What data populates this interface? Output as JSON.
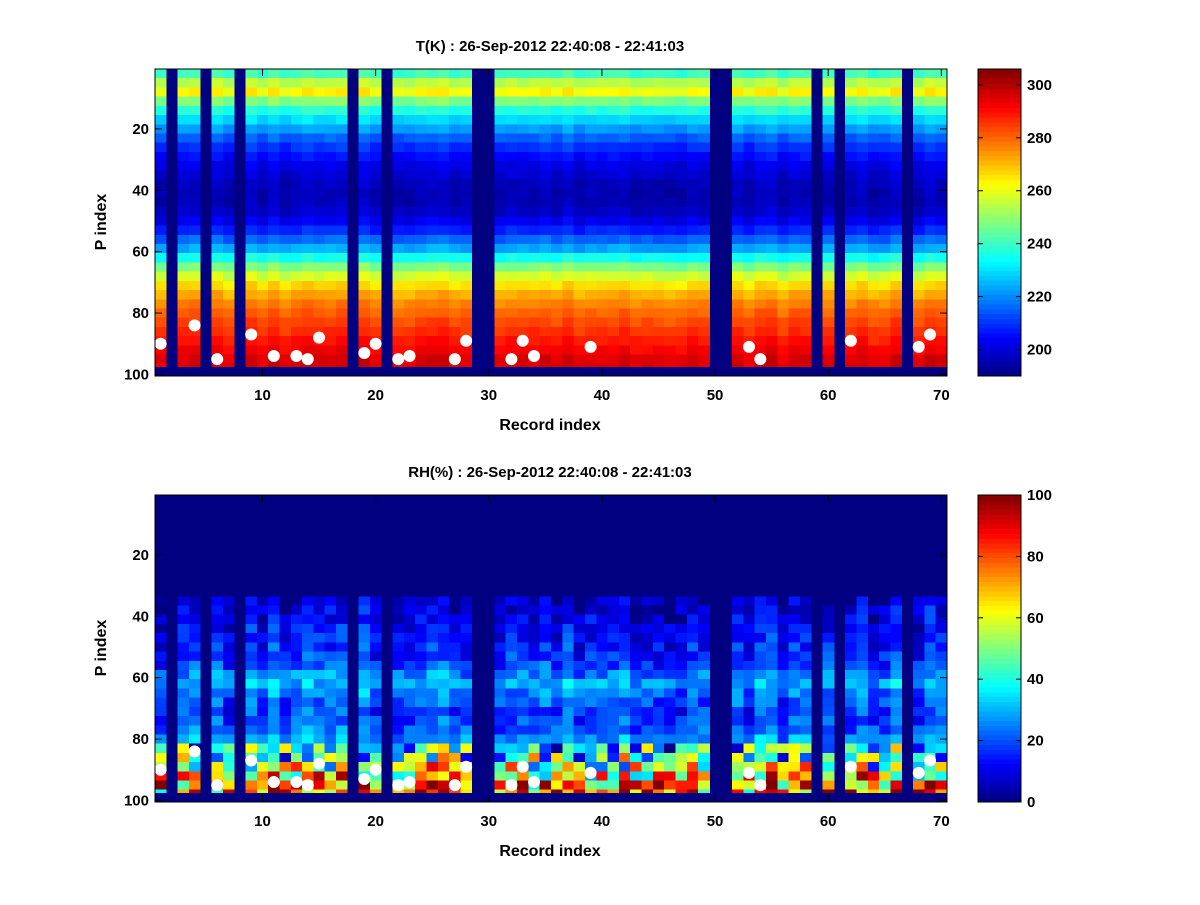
{
  "chart_data": [
    {
      "type": "heatmap",
      "title": "T(K) : 26-Sep-2012 22:40:08 - 22:41:03",
      "xlabel": "Record index",
      "ylabel": "P index",
      "xlim": [
        0.5,
        70.5
      ],
      "ylim": [
        0.5,
        100.5
      ],
      "y_direction": "reversed",
      "x_ticks": [
        10,
        20,
        30,
        40,
        50,
        60,
        70
      ],
      "y_ticks": [
        20,
        40,
        60,
        80,
        100
      ],
      "colormap": "jet",
      "colorbar": {
        "min": 190,
        "max": 306,
        "ticks": [
          200,
          220,
          240,
          260,
          280,
          300
        ]
      },
      "fill_columns": [
        2,
        5,
        8,
        18,
        21,
        29,
        30,
        50,
        51,
        59,
        61,
        67
      ],
      "fill_level": 97,
      "profile": {
        "p_index": [
          1,
          4,
          7,
          9,
          12,
          18,
          25,
          32,
          40,
          46,
          52,
          60,
          66,
          72,
          78,
          84,
          90,
          96
        ],
        "value": [
          238,
          244,
          265,
          262,
          245,
          228,
          212,
          202,
          196,
          196,
          205,
          225,
          250,
          268,
          278,
          284,
          290,
          296
        ]
      },
      "markers": {
        "x": [
          1,
          4,
          6,
          9,
          11,
          13,
          14,
          15,
          19,
          20,
          22,
          23,
          27,
          28,
          32,
          33,
          34,
          39,
          53,
          54,
          62,
          68,
          69
        ],
        "y": [
          90,
          84,
          95,
          87,
          94,
          94,
          95,
          88,
          93,
          90,
          95,
          94,
          95,
          89,
          95,
          89,
          94,
          91,
          91,
          95,
          89,
          91,
          87
        ]
      }
    },
    {
      "type": "heatmap",
      "title": "RH(%) : 26-Sep-2012 22:40:08 - 22:41:03",
      "xlabel": "Record index",
      "ylabel": "P index",
      "xlim": [
        0.5,
        70.5
      ],
      "ylim": [
        0.5,
        100.5
      ],
      "y_direction": "reversed",
      "x_ticks": [
        10,
        20,
        30,
        40,
        50,
        60,
        70
      ],
      "y_ticks": [
        20,
        40,
        60,
        80,
        100
      ],
      "colormap": "jet",
      "colorbar": {
        "min": 0,
        "max": 100,
        "ticks": [
          0,
          20,
          40,
          60,
          80,
          100
        ]
      },
      "fill_columns": [
        2,
        5,
        8,
        18,
        21,
        29,
        30,
        50,
        51,
        59,
        61,
        67
      ],
      "fill_level": 97,
      "profile": {
        "p_index": [
          1,
          33,
          36,
          44,
          52,
          57,
          62,
          67,
          72,
          77,
          82,
          86,
          90,
          93,
          97
        ],
        "value": [
          0,
          0,
          8,
          12,
          16,
          20,
          30,
          22,
          18,
          22,
          30,
          40,
          55,
          65,
          75
        ]
      },
      "markers": {
        "x": [
          1,
          4,
          6,
          9,
          11,
          13,
          14,
          15,
          19,
          20,
          22,
          23,
          27,
          28,
          32,
          33,
          34,
          39,
          53,
          54,
          62,
          68,
          69
        ],
        "y": [
          90,
          84,
          95,
          87,
          94,
          94,
          95,
          88,
          93,
          90,
          95,
          94,
          95,
          89,
          95,
          89,
          94,
          91,
          91,
          95,
          89,
          91,
          87
        ]
      }
    }
  ]
}
